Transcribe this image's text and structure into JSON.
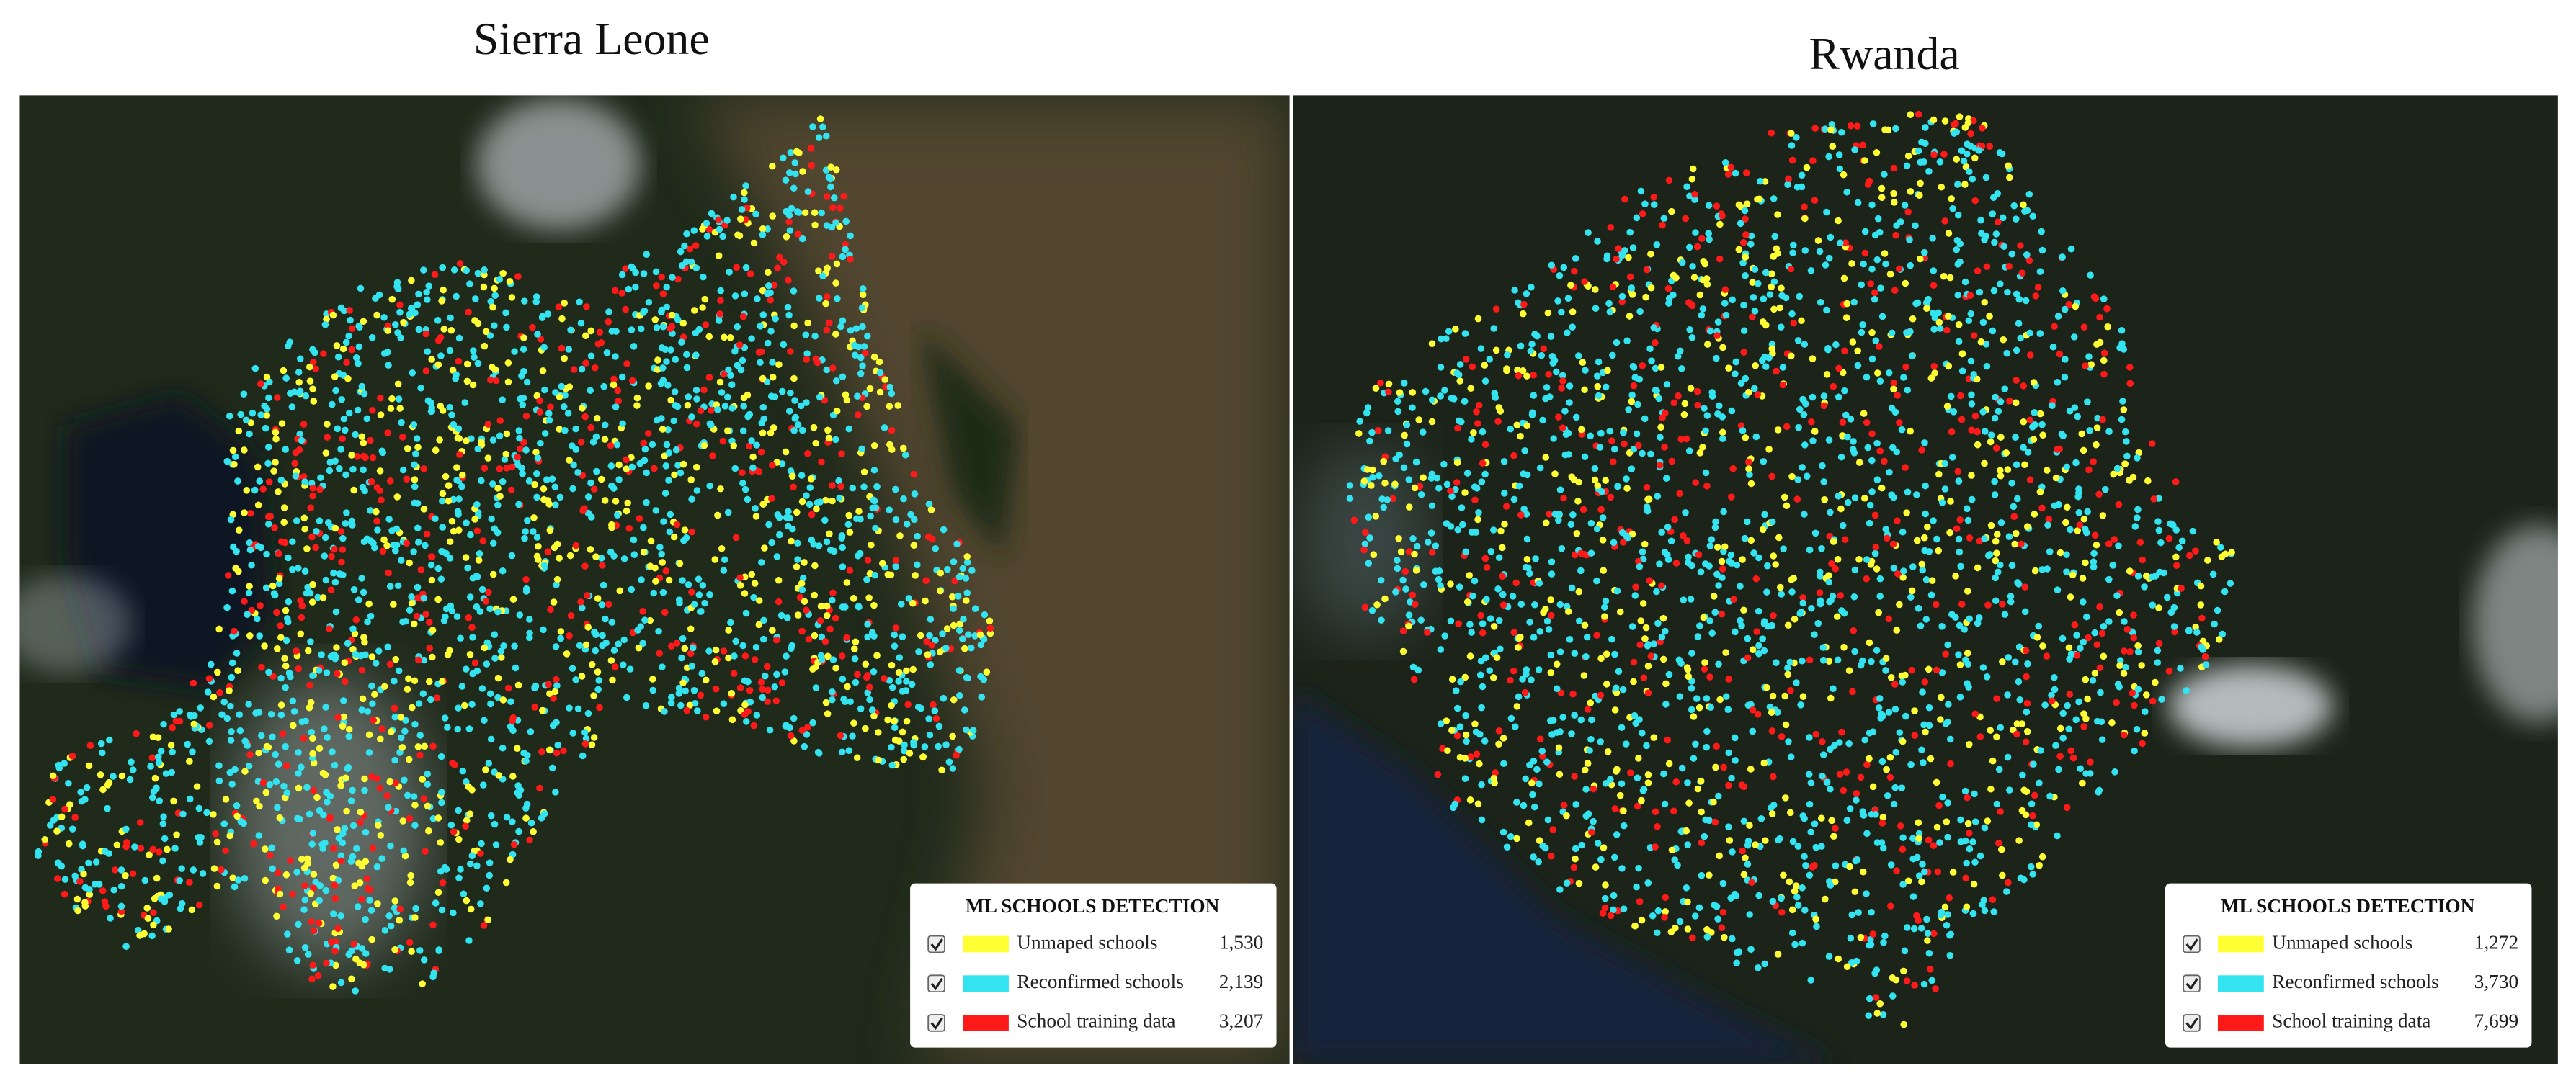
{
  "panels": [
    {
      "title": "Sierra Leone",
      "legend": {
        "title": "ML SCHOOLS DETECTION",
        "items": [
          {
            "label": "Unmaped schools",
            "count": "1,530",
            "color": "#ffff33"
          },
          {
            "label": "Reconfirmed schools",
            "count": "2,139",
            "color": "#33e3f0"
          },
          {
            "label": "School training data",
            "count": "3,207",
            "color": "#ff1a1a"
          }
        ]
      }
    },
    {
      "title": "Rwanda",
      "legend": {
        "title": "ML SCHOOLS DETECTION",
        "items": [
          {
            "label": "Unmaped schools",
            "count": "1,272",
            "color": "#ffff33"
          },
          {
            "label": "Reconfirmed schools",
            "count": "3,730",
            "color": "#33e3f0"
          },
          {
            "label": "School training data",
            "count": "7,699",
            "color": "#ff1a1a"
          }
        ]
      }
    }
  ]
}
